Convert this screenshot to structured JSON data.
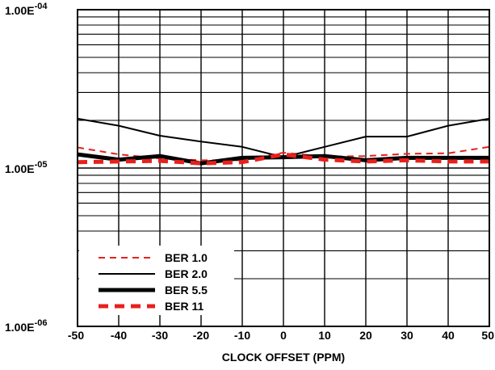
{
  "chart_data": {
    "type": "line",
    "title": "",
    "xlabel": "CLOCK OFFSET (PPM)",
    "ylabel": "",
    "yscale": "log",
    "xlim": [
      -50,
      50
    ],
    "ylim": [
      1e-06,
      0.0001
    ],
    "grid": true,
    "legend_position": "bottom-left",
    "x": [
      -50,
      -40,
      -30,
      -20,
      -10,
      0,
      10,
      20,
      30,
      40,
      50
    ],
    "x_tick_labels": [
      "-50",
      "-40",
      "-30",
      "-20",
      "-10",
      "0",
      "10",
      "20",
      "30",
      "40",
      "50"
    ],
    "y_tick_labels": [
      {
        "value": 0.0001,
        "mantissa": "1.00E",
        "exponent": "-04"
      },
      {
        "value": 1e-05,
        "mantissa": "1.00E",
        "exponent": "-05"
      },
      {
        "value": 1e-06,
        "mantissa": "1.00E",
        "exponent": "-06"
      }
    ],
    "series": [
      {
        "name": "BER 1.0",
        "color": "#e8201c",
        "style": "dashed",
        "weight": "thin",
        "values": [
          1.35e-05,
          1.22e-05,
          1.15e-05,
          1.12e-05,
          1.12e-05,
          1.25e-05,
          1.18e-05,
          1.19e-05,
          1.23e-05,
          1.24e-05,
          1.36e-05
        ]
      },
      {
        "name": "BER 2.0",
        "color": "#000000",
        "style": "solid",
        "weight": "thin",
        "values": [
          2.05e-05,
          1.85e-05,
          1.6e-05,
          1.47e-05,
          1.36e-05,
          1.17e-05,
          1.36e-05,
          1.58e-05,
          1.58e-05,
          1.85e-05,
          2.05e-05
        ]
      },
      {
        "name": "BER 5.5",
        "color": "#000000",
        "style": "solid",
        "weight": "thick",
        "values": [
          1.22e-05,
          1.13e-05,
          1.19e-05,
          1.07e-05,
          1.16e-05,
          1.17e-05,
          1.19e-05,
          1.12e-05,
          1.16e-05,
          1.16e-05,
          1.16e-05
        ]
      },
      {
        "name": "BER 11",
        "color": "#e8201c",
        "style": "dashed",
        "weight": "thick",
        "values": [
          1.09e-05,
          1.1e-05,
          1.11e-05,
          1.07e-05,
          1.09e-05,
          1.22e-05,
          1.13e-05,
          1.1e-05,
          1.12e-05,
          1.1e-05,
          1.1e-05
        ]
      }
    ]
  }
}
